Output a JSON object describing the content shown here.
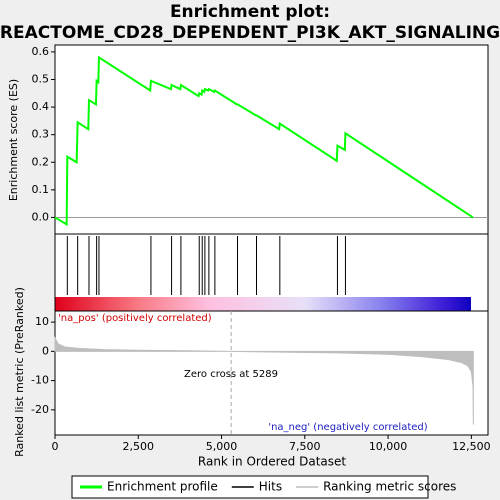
{
  "chart_data": [
    {
      "type": "line",
      "title": "Enrichment plot:",
      "subtitle": "REACTOME_CD28_DEPENDENT_PI3K_AKT_SIGNALING",
      "ylabel": "Enrichment score (ES)",
      "xlim": [
        0,
        13000
      ],
      "ylim": [
        -0.06,
        0.625
      ],
      "yticks": [
        {
          "value": 0,
          "label": "0.0"
        },
        0.1,
        0.2,
        0.3,
        0.4,
        0.5,
        0.6
      ],
      "grid": false,
      "series": [
        {
          "name": "Enrichment profile",
          "color": "#00ff00",
          "x": [
            0,
            350,
            370,
            650,
            680,
            1000,
            1020,
            1230,
            1250,
            1300,
            1320,
            2860,
            2880,
            3480,
            3500,
            3760,
            3780,
            4310,
            4330,
            4400,
            4420,
            4480,
            4500,
            4600,
            4620,
            4780,
            4800,
            5460,
            5480,
            6030,
            6050,
            6730,
            6750,
            8460,
            8480,
            8700,
            8720,
            12550
          ],
          "values": [
            0,
            -0.025,
            0.22,
            0.2,
            0.345,
            0.32,
            0.425,
            0.41,
            0.495,
            0.49,
            0.58,
            0.46,
            0.495,
            0.465,
            0.48,
            0.465,
            0.48,
            0.44,
            0.45,
            0.445,
            0.46,
            0.455,
            0.465,
            0.46,
            0.465,
            0.455,
            0.46,
            0.41,
            0.41,
            0.37,
            0.37,
            0.32,
            0.34,
            0.205,
            0.26,
            0.245,
            0.305,
            0.0
          ]
        }
      ]
    },
    {
      "type": "hits",
      "xlim": [
        0,
        13000
      ],
      "series": [
        {
          "name": "Hits",
          "color": "#000000",
          "x": [
            370,
            680,
            1020,
            1250,
            1320,
            2880,
            3500,
            3780,
            4330,
            4420,
            4500,
            4620,
            4800,
            5480,
            6050,
            6750,
            8480,
            8720
          ]
        }
      ]
    },
    {
      "type": "area",
      "ylabel": "Ranked list metric (PreRanked)",
      "xlabel": "Rank in Ordered Dataset",
      "xlim": [
        0,
        13000
      ],
      "ylim": [
        -28.6,
        13.8
      ],
      "yticks": [
        10,
        0,
        -10,
        -20
      ],
      "xticks": [
        0,
        {
          "value": 2500,
          "label": "2,500"
        },
        {
          "value": 5000,
          "label": "5,000"
        },
        {
          "value": 7500,
          "label": "7,500"
        },
        {
          "value": 10000,
          "label": "10,000"
        },
        {
          "value": 12500,
          "label": "12,500"
        }
      ],
      "zero_cross": 5289,
      "annotations": [
        "'na_pos' (positively correlated)",
        "Zero cross at 5289",
        "'na_neg' (negatively correlated)"
      ],
      "series": [
        {
          "name": "Ranking metric scores",
          "color": "#bebebe",
          "x": [
            0,
            100,
            300,
            700,
            1500,
            2500,
            4000,
            5289,
            7000,
            8500,
            10000,
            11000,
            11800,
            12200,
            12400,
            12500,
            12550,
            12560
          ],
          "values": [
            4.5,
            2.5,
            1.5,
            1,
            0.6,
            0.4,
            0.2,
            0,
            -0.3,
            -0.5,
            -1,
            -1.8,
            -2.8,
            -3.8,
            -5,
            -7,
            -12,
            -25
          ]
        }
      ]
    }
  ]
}
